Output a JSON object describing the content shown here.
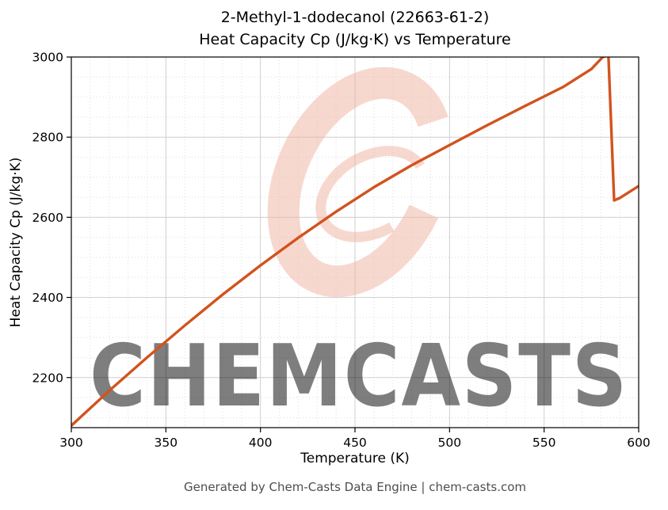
{
  "title": {
    "line1": "2-Methyl-1-dodecanol (22663-61-2)",
    "line2": "Heat Capacity Cp (J/kg·K) vs Temperature"
  },
  "footer": {
    "text": "Generated by Chem-Casts Data Engine | chem-casts.com"
  },
  "watermark": {
    "text": "CHEMCASTS",
    "color": "#f0b2a0"
  },
  "chart_data": {
    "type": "line",
    "title": "2-Methyl-1-dodecanol (22663-61-2)\nHeat Capacity Cp (J/kg·K) vs Temperature",
    "xlabel": "Temperature (K)",
    "ylabel": "Heat Capacity Cp (J/kg·K)",
    "xlim": [
      300,
      600
    ],
    "ylim": [
      2075,
      3000
    ],
    "x_ticks": [
      300,
      350,
      400,
      450,
      500,
      550,
      600
    ],
    "y_ticks": [
      2200,
      2400,
      2600,
      2800,
      3000
    ],
    "grid": true,
    "legend": false,
    "line_color": "#d2531e",
    "series": [
      {
        "name": "Heat Capacity Cp",
        "x": [
          300,
          320,
          340,
          360,
          380,
          400,
          420,
          440,
          460,
          480,
          500,
          520,
          540,
          560,
          575,
          581,
          584,
          587,
          590,
          600
        ],
        "y": [
          2080,
          2167,
          2250,
          2330,
          2407,
          2480,
          2549,
          2614,
          2675,
          2730,
          2780,
          2830,
          2878,
          2925,
          2970,
          3000,
          3005,
          2642,
          2648,
          2678
        ]
      }
    ]
  }
}
